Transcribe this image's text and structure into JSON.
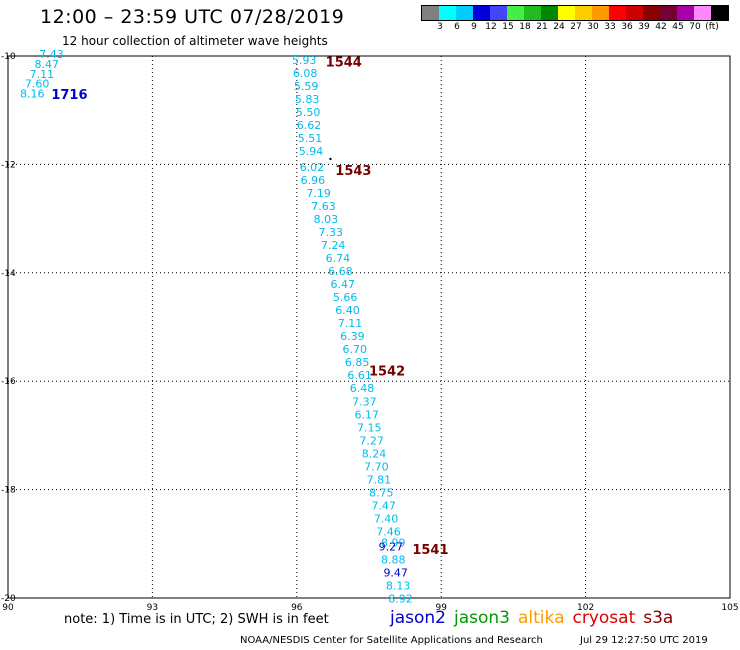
{
  "header": {
    "title": "12:00 – 23:59 UTC 07/28/2019",
    "subtitle": "12 hour collection of altimeter wave heights"
  },
  "colorbar": {
    "colors": [
      "#808080",
      "#00ffff",
      "#00ccff",
      "#0000dd",
      "#4444ff",
      "#44ee44",
      "#22bb22",
      "#008800",
      "#ffff00",
      "#ffcc00",
      "#ff9900",
      "#ff0000",
      "#cc0000",
      "#880000",
      "#770033",
      "#aa00aa",
      "#ff88ff",
      "#000000"
    ],
    "labels": [
      "3",
      "6",
      "9",
      "12",
      "15",
      "18",
      "21",
      "24",
      "27",
      "30",
      "33",
      "36",
      "39",
      "42",
      "45",
      "70",
      "(ft)"
    ]
  },
  "chart_data": {
    "type": "scatter",
    "xlim": [
      90,
      105
    ],
    "ylim": [
      -20,
      -10
    ],
    "x_ticks": [
      "90",
      "93",
      "96",
      "99",
      "102",
      "105"
    ],
    "y_ticks": [
      "-10",
      "-12",
      "-14",
      "-16",
      "-18",
      "-20"
    ],
    "grid": true,
    "tracks": [
      {
        "label": "1716",
        "x": 90.9,
        "y": -10.7,
        "color": "#0000cc"
      },
      {
        "label": "1544",
        "x": 96.6,
        "y": -10.1,
        "color": "#770000"
      },
      {
        "label": "1543",
        "x": 96.8,
        "y": -12.1,
        "color": "#770000"
      },
      {
        "label": "1542",
        "x": 97.5,
        "y": -15.8,
        "color": "#770000"
      },
      {
        "label": "1541",
        "x": 98.4,
        "y": -19.1,
        "color": "#770000"
      }
    ],
    "points": [
      {
        "x": 90.65,
        "y": -9.96,
        "v": "7.43",
        "color": "#00bbee"
      },
      {
        "x": 90.55,
        "y": -10.15,
        "v": "8.47",
        "color": "#00bbee"
      },
      {
        "x": 90.45,
        "y": -10.33,
        "v": "7.11",
        "color": "#00bbee"
      },
      {
        "x": 90.35,
        "y": -10.51,
        "v": "7.60",
        "color": "#00bbee"
      },
      {
        "x": 90.25,
        "y": -10.69,
        "v": "8.16",
        "color": "#00bbee"
      },
      {
        "x": 95.9,
        "y": -10.07,
        "v": "5.93",
        "color": "#00bbee"
      },
      {
        "x": 95.92,
        "y": -10.31,
        "v": "6.08",
        "color": "#00bbee"
      },
      {
        "x": 95.94,
        "y": -10.55,
        "v": "5.59",
        "color": "#00bbee"
      },
      {
        "x": 95.96,
        "y": -10.79,
        "v": "5.83",
        "color": "#00bbee"
      },
      {
        "x": 95.98,
        "y": -11.03,
        "v": "5.50",
        "color": "#00bbee"
      },
      {
        "x": 96.0,
        "y": -11.27,
        "v": "6.62",
        "color": "#00bbee"
      },
      {
        "x": 96.02,
        "y": -11.51,
        "v": "5.51",
        "color": "#00bbee"
      },
      {
        "x": 96.04,
        "y": -11.75,
        "v": "5.94",
        "color": "#00bbee"
      },
      {
        "x": 96.06,
        "y": -12.05,
        "v": "6.02",
        "color": "#00bbee"
      },
      {
        "x": 96.08,
        "y": -12.29,
        "v": "6.96",
        "color": "#00bbee"
      },
      {
        "x": 96.2,
        "y": -12.53,
        "v": "7.19",
        "color": "#00bbee"
      },
      {
        "x": 96.3,
        "y": -12.77,
        "v": "7.63",
        "color": "#00bbee"
      },
      {
        "x": 96.35,
        "y": -13.01,
        "v": "8.03",
        "color": "#00bbee"
      },
      {
        "x": 96.45,
        "y": -13.25,
        "v": "7.33",
        "color": "#00bbee"
      },
      {
        "x": 96.5,
        "y": -13.49,
        "v": "7.24",
        "color": "#00bbee"
      },
      {
        "x": 96.6,
        "y": -13.73,
        "v": "6.74",
        "color": "#00bbee"
      },
      {
        "x": 96.65,
        "y": -13.97,
        "v": "6.68",
        "color": "#00bbee"
      },
      {
        "x": 96.7,
        "y": -14.21,
        "v": "6.47",
        "color": "#00bbee"
      },
      {
        "x": 96.75,
        "y": -14.45,
        "v": "5.66",
        "color": "#00bbee"
      },
      {
        "x": 96.8,
        "y": -14.69,
        "v": "6.40",
        "color": "#00bbee"
      },
      {
        "x": 96.85,
        "y": -14.93,
        "v": "7.11",
        "color": "#00bbee"
      },
      {
        "x": 96.9,
        "y": -15.17,
        "v": "6.39",
        "color": "#00bbee"
      },
      {
        "x": 96.95,
        "y": -15.41,
        "v": "6.70",
        "color": "#00bbee"
      },
      {
        "x": 97.0,
        "y": -15.65,
        "v": "6.85",
        "color": "#00bbee"
      },
      {
        "x": 97.05,
        "y": -15.89,
        "v": "6.61",
        "color": "#00bbee"
      },
      {
        "x": 97.1,
        "y": -16.13,
        "v": "6.48",
        "color": "#00bbee"
      },
      {
        "x": 97.15,
        "y": -16.37,
        "v": "7.37",
        "color": "#00bbee"
      },
      {
        "x": 97.2,
        "y": -16.61,
        "v": "6.17",
        "color": "#00bbee"
      },
      {
        "x": 97.25,
        "y": -16.85,
        "v": "7.15",
        "color": "#00bbee"
      },
      {
        "x": 97.3,
        "y": -17.09,
        "v": "7.27",
        "color": "#00bbee"
      },
      {
        "x": 97.35,
        "y": -17.33,
        "v": "8.24",
        "color": "#00bbee"
      },
      {
        "x": 97.4,
        "y": -17.57,
        "v": "7.70",
        "color": "#00bbee"
      },
      {
        "x": 97.45,
        "y": -17.81,
        "v": "7.81",
        "color": "#00bbee"
      },
      {
        "x": 97.5,
        "y": -18.05,
        "v": "8.75",
        "color": "#00bbee"
      },
      {
        "x": 97.55,
        "y": -18.29,
        "v": "7.47",
        "color": "#00bbee"
      },
      {
        "x": 97.6,
        "y": -18.53,
        "v": "7.40",
        "color": "#00bbee"
      },
      {
        "x": 97.65,
        "y": -18.77,
        "v": "7.46",
        "color": "#00bbee"
      },
      {
        "x": 97.75,
        "y": -18.98,
        "v": "8.99",
        "color": "#00bbee"
      },
      {
        "x": 97.7,
        "y": -19.05,
        "v": "9.27",
        "color": "#0000cc"
      },
      {
        "x": 97.75,
        "y": -19.29,
        "v": "8.88",
        "color": "#00bbee"
      },
      {
        "x": 97.8,
        "y": -19.53,
        "v": "9.47",
        "color": "#0000cc"
      },
      {
        "x": 97.85,
        "y": -19.77,
        "v": "8.13",
        "color": "#00bbee"
      },
      {
        "x": 97.9,
        "y": -20.01,
        "v": "8.92",
        "color": "#00bbee"
      }
    ]
  },
  "footer": {
    "note": "note:  1) Time is in UTC;  2) SWH is in feet",
    "legend": [
      {
        "name": "jason2",
        "color": "#0000cc"
      },
      {
        "name": "jason3",
        "color": "#009900"
      },
      {
        "name": "altika",
        "color": "#ff9900"
      },
      {
        "name": "cryosat",
        "color": "#dd0000"
      },
      {
        "name": "s3a",
        "color": "#880000"
      }
    ],
    "credit": "NOAA/NESDIS Center for Satellite Applications and Research",
    "timestamp": "Jul 29 12:27:50 UTC 2019"
  }
}
